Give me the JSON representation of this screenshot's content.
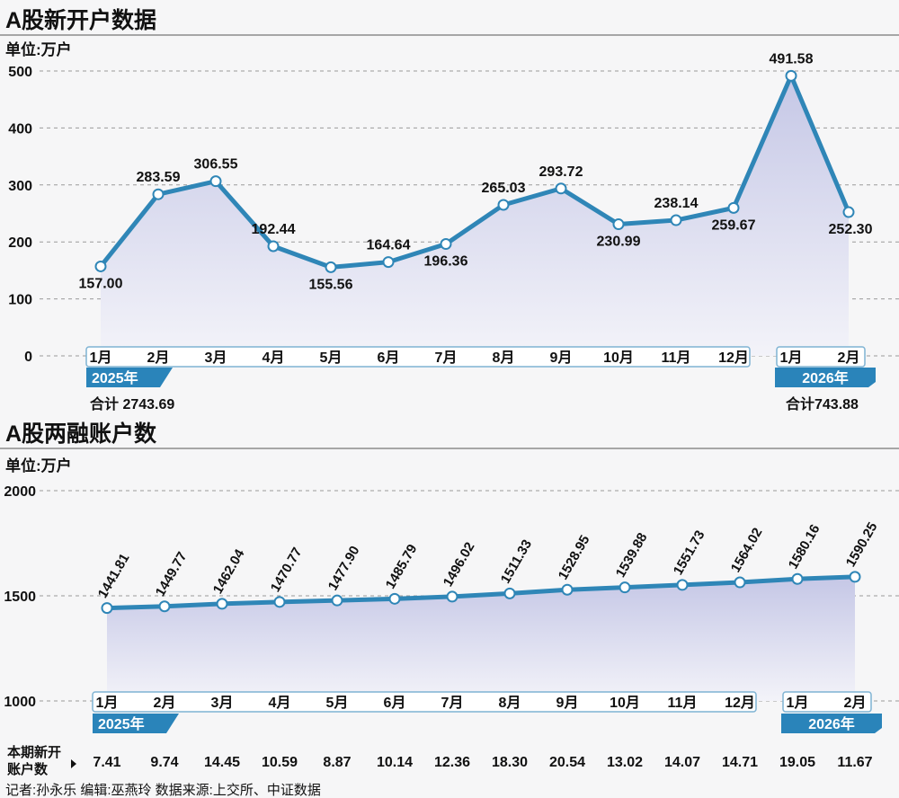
{
  "colors": {
    "line": "#2f86b7",
    "area_top": "#c5c7e6",
    "area_bottom": "#f3f3f9",
    "badge": "#2a84ba",
    "text": "#111111",
    "grid": "#9a9a9a",
    "background": "#f6f6f7"
  },
  "source_text": "记者:孙永乐   编辑:巫燕玲   数据来源:上交所、中证数据",
  "chart_data": [
    {
      "type": "line",
      "title": "A股新开户数据",
      "unit": "单位:万户",
      "ylim": [
        0,
        500
      ],
      "yticks": [
        0,
        100,
        200,
        300,
        400,
        500
      ],
      "grid": true,
      "area_fill": true,
      "categories": [
        "1月",
        "2月",
        "3月",
        "4月",
        "5月",
        "6月",
        "7月",
        "8月",
        "9月",
        "10月",
        "11月",
        "12月",
        "1月",
        "2月"
      ],
      "series": [
        {
          "values": [
            157.0,
            283.59,
            306.55,
            192.44,
            155.56,
            164.64,
            196.36,
            265.03,
            293.72,
            230.99,
            238.14,
            259.67,
            491.58,
            252.3
          ]
        }
      ],
      "labels": [
        "157.00",
        "283.59",
        "306.55",
        "192.44",
        "155.56",
        "164.64",
        "196.36",
        "265.03",
        "293.72",
        "230.99",
        "238.14",
        "259.67",
        "491.58",
        "252.30"
      ],
      "year_groups": [
        {
          "year": "2025年",
          "total": "合计 2743.69",
          "count": 12
        },
        {
          "year": "2026年",
          "total": "合计743.88",
          "count": 2
        }
      ]
    },
    {
      "type": "line",
      "title": "A股两融账户数",
      "unit": "单位:万户",
      "ylim": [
        1000,
        2000
      ],
      "yticks": [
        1000,
        1500,
        2000
      ],
      "grid": true,
      "area_fill": true,
      "categories": [
        "1月",
        "2月",
        "3月",
        "4月",
        "5月",
        "6月",
        "7月",
        "8月",
        "9月",
        "10月",
        "11月",
        "12月",
        "1月",
        "2月"
      ],
      "series": [
        {
          "values": [
            1441.81,
            1449.77,
            1462.04,
            1470.77,
            1477.9,
            1485.79,
            1496.02,
            1511.33,
            1528.95,
            1539.88,
            1551.73,
            1564.02,
            1580.16,
            1590.25
          ]
        }
      ],
      "labels": [
        "1441.81",
        "1449.77",
        "1462.04",
        "1470.77",
        "1477.90",
        "1485.79",
        "1496.02",
        "1511.33",
        "1528.95",
        "1539.88",
        "1551.73",
        "1564.02",
        "1580.16",
        "1590.25"
      ],
      "year_groups": [
        {
          "year": "2025年",
          "count": 12
        },
        {
          "year": "2026年",
          "count": 2
        }
      ],
      "new_accounts_row": {
        "label_line1": "本期新开",
        "label_line2": "账户数",
        "values": [
          "7.41",
          "9.74",
          "14.45",
          "10.59",
          "8.87",
          "10.14",
          "12.36",
          "18.30",
          "20.54",
          "13.02",
          "14.07",
          "14.71",
          "19.05",
          "11.67"
        ]
      }
    }
  ]
}
